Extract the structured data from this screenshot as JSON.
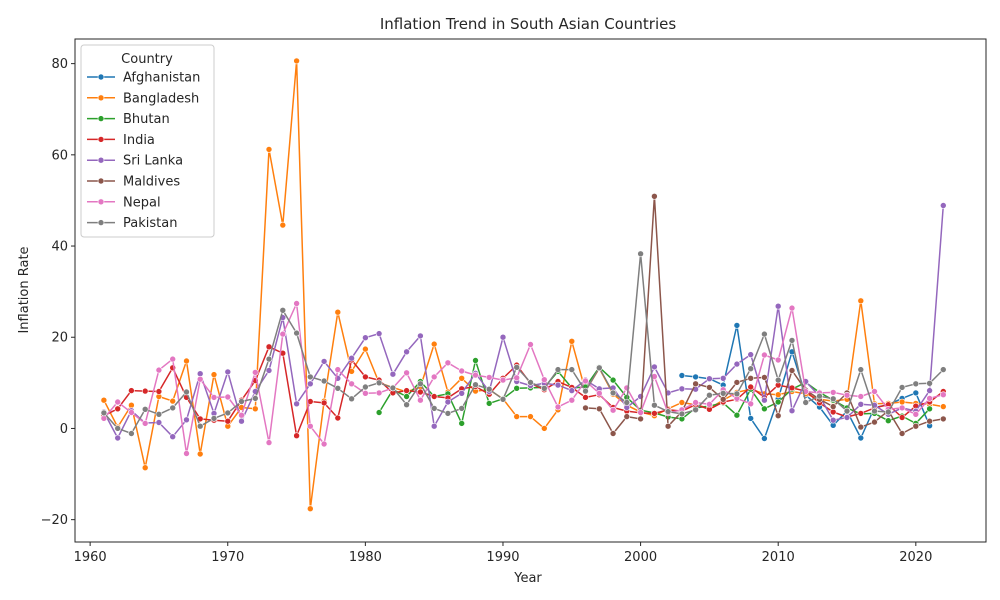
{
  "chart_data": {
    "type": "line",
    "title": "Inflation Trend in South Asian Countries",
    "xlabel": "Year",
    "ylabel": "Inflation Rate",
    "xlim": [
      1958.9,
      2025.1
    ],
    "ylim": [
      -24.9,
      85.4
    ],
    "xticks": [
      1960,
      1970,
      1980,
      1990,
      2000,
      2010,
      2020
    ],
    "yticks": [
      -20,
      0,
      20,
      40,
      60,
      80
    ],
    "grid": false,
    "legend": {
      "title": "Country",
      "placement": "top-left"
    },
    "series": [
      {
        "name": "Afghanistan",
        "color": "#1f77b4",
        "x": [
          2003,
          2004,
          2005,
          2006,
          2007,
          2008,
          2009,
          2010,
          2011,
          2012,
          2013,
          2014,
          2015,
          2016,
          2017,
          2018,
          2019,
          2020,
          2021
        ],
        "y": [
          11.6,
          11.3,
          10.9,
          9.5,
          22.6,
          2.2,
          -2.2,
          6.5,
          16.8,
          7.3,
          4.7,
          0.7,
          3.8,
          -2.1,
          4.6,
          5.2,
          6.6,
          7.8,
          0.6
        ]
      },
      {
        "name": "Bangladesh",
        "color": "#ff7f0e",
        "x": [
          1961,
          1962,
          1963,
          1964,
          1965,
          1966,
          1967,
          1968,
          1969,
          1970,
          1971,
          1972,
          1973,
          1974,
          1975,
          1976,
          1977,
          1978,
          1979,
          1980,
          1981,
          1982,
          1983,
          1984,
          1985,
          1986,
          1987,
          1988,
          1989,
          1990,
          1991,
          1992,
          1993,
          1994,
          1995,
          1996,
          1997,
          1998,
          1999,
          2000,
          2001,
          2002,
          2003,
          2004,
          2005,
          2006,
          2007,
          2008,
          2009,
          2010,
          2011,
          2012,
          2013,
          2014,
          2015,
          2016,
          2017,
          2018,
          2019,
          2020,
          2021,
          2022
        ],
        "y": [
          6.2,
          0.3,
          5.1,
          -8.6,
          7.0,
          6.0,
          14.8,
          -5.6,
          11.8,
          0.5,
          4.6,
          4.3,
          61.2,
          44.6,
          80.6,
          -17.6,
          6.0,
          25.5,
          12.5,
          17.4,
          10.0,
          9.0,
          8.0,
          9.1,
          18.5,
          8.0,
          11.0,
          8.2,
          8.5,
          6.5,
          2.6,
          2.6,
          0.0,
          4.1,
          19.1,
          8.2,
          13.2,
          7.5,
          5.1,
          3.6,
          2.8,
          4.3,
          5.7,
          5.2,
          4.4,
          6.2,
          7.9,
          8.6,
          7.6,
          7.4,
          8.1,
          7.6,
          6.4,
          6.0,
          6.4,
          28.0,
          5.4,
          5.5,
          5.8,
          5.5,
          5.3,
          4.8
        ]
      },
      {
        "name": "Bhutan",
        "color": "#2ca02c",
        "x": [
          1981,
          1982,
          1983,
          1984,
          1985,
          1986,
          1987,
          1988,
          1989,
          1990,
          1991,
          1992,
          1993,
          1994,
          1995,
          1996,
          1997,
          1998,
          1999,
          2000,
          2001,
          2002,
          2003,
          2004,
          2005,
          2006,
          2007,
          2008,
          2009,
          2010,
          2011,
          2012,
          2013,
          2014,
          2015,
          2016,
          2017,
          2018,
          2019,
          2020,
          2021
        ],
        "y": [
          3.5,
          8.5,
          7.0,
          10.3,
          7.0,
          7.6,
          1.1,
          14.9,
          5.5,
          6.5,
          8.8,
          8.9,
          9.0,
          12.5,
          8.9,
          9.1,
          13.4,
          10.6,
          6.8,
          4.0,
          3.4,
          2.5,
          2.1,
          4.5,
          4.9,
          5.6,
          2.9,
          8.6,
          4.3,
          5.8,
          8.6,
          10.1,
          7.9,
          6.2,
          4.5,
          3.2,
          3.3,
          1.7,
          2.7,
          1.1,
          4.3
        ]
      },
      {
        "name": "India",
        "color": "#d62728",
        "x": [
          1961,
          1962,
          1963,
          1964,
          1965,
          1966,
          1967,
          1968,
          1969,
          1970,
          1971,
          1972,
          1973,
          1974,
          1975,
          1976,
          1977,
          1978,
          1979,
          1980,
          1981,
          1982,
          1983,
          1984,
          1985,
          1986,
          1987,
          1988,
          1989,
          1990,
          1991,
          1992,
          1993,
          1994,
          1995,
          1996,
          1997,
          1998,
          1999,
          2000,
          2001,
          2002,
          2003,
          2004,
          2005,
          2006,
          2007,
          2008,
          2009,
          2010,
          2011,
          2012,
          2013,
          2014,
          2015,
          2016,
          2017,
          2018,
          2019,
          2020,
          2021,
          2022
        ],
        "y": [
          2.8,
          4.3,
          8.3,
          8.2,
          8.1,
          13.3,
          6.8,
          2.1,
          1.8,
          1.6,
          6.2,
          10.5,
          17.9,
          16.5,
          -1.6,
          5.9,
          5.6,
          2.3,
          15.0,
          11.3,
          10.6,
          7.8,
          8.3,
          8.0,
          7.0,
          6.7,
          8.7,
          9.2,
          7.5,
          11.0,
          13.9,
          9.9,
          8.5,
          10.3,
          9.0,
          6.8,
          7.4,
          4.6,
          3.8,
          3.4,
          3.3,
          4.1,
          3.8,
          5.2,
          4.2,
          5.8,
          6.4,
          9.1,
          6.8,
          9.5,
          8.9,
          8.2,
          5.6,
          3.6,
          2.5,
          3.3,
          4.5,
          5.2,
          2.4,
          4.9,
          5.8,
          8.1
        ]
      },
      {
        "name": "Sri Lanka",
        "color": "#9467bd",
        "x": [
          1961,
          1962,
          1963,
          1964,
          1965,
          1966,
          1967,
          1968,
          1969,
          1970,
          1971,
          1972,
          1973,
          1974,
          1975,
          1976,
          1977,
          1978,
          1979,
          1980,
          1981,
          1982,
          1983,
          1984,
          1985,
          1986,
          1987,
          1988,
          1989,
          1990,
          1991,
          1992,
          1993,
          1994,
          1995,
          1996,
          1997,
          1998,
          1999,
          2000,
          2001,
          2002,
          2003,
          2004,
          2005,
          2006,
          2007,
          2008,
          2009,
          2010,
          2011,
          2012,
          2013,
          2014,
          2015,
          2016,
          2017,
          2018,
          2019,
          2020,
          2021,
          2022
        ],
        "y": [
          3.6,
          -2.1,
          3.9,
          1.2,
          1.3,
          -1.8,
          1.9,
          12.0,
          3.3,
          12.4,
          1.6,
          8.1,
          12.7,
          24.3,
          5.4,
          9.8,
          14.7,
          11.0,
          15.4,
          19.9,
          20.8,
          11.9,
          16.8,
          20.3,
          0.5,
          5.8,
          7.7,
          12.1,
          8.1,
          20.0,
          10.3,
          9.4,
          9.9,
          9.5,
          8.3,
          10.6,
          8.7,
          8.9,
          4.6,
          7.0,
          13.5,
          7.8,
          8.7,
          8.6,
          10.9,
          11.0,
          14.1,
          16.2,
          6.2,
          26.8,
          3.9,
          10.3,
          7.1,
          1.8,
          2.4,
          5.3,
          5.1,
          3.1,
          4.5,
          3.8,
          8.3,
          48.9
        ]
      },
      {
        "name": "Maldives",
        "color": "#8c564b",
        "x": [
          1996,
          1997,
          1998,
          1999,
          2000,
          2001,
          2002,
          2003,
          2004,
          2005,
          2006,
          2007,
          2008,
          2009,
          2010,
          2011,
          2012,
          2013,
          2014,
          2015,
          2016,
          2017,
          2018,
          2019,
          2020,
          2021,
          2022
        ],
        "y": [
          4.5,
          4.3,
          -1.1,
          2.6,
          2.1,
          50.9,
          0.5,
          3.7,
          9.8,
          9.0,
          6.4,
          10.1,
          11.0,
          11.2,
          2.8,
          12.7,
          8.4,
          6.4,
          4.8,
          7.8,
          0.3,
          1.4,
          3.9,
          -1.1,
          0.5,
          1.6,
          2.1
        ]
      },
      {
        "name": "Nepal",
        "color": "#e377c2",
        "x": [
          1961,
          1962,
          1963,
          1964,
          1965,
          1966,
          1967,
          1968,
          1969,
          1970,
          1971,
          1972,
          1973,
          1974,
          1975,
          1976,
          1977,
          1978,
          1979,
          1980,
          1981,
          1982,
          1983,
          1984,
          1985,
          1986,
          1987,
          1988,
          1989,
          1990,
          1991,
          1992,
          1993,
          1994,
          1995,
          1996,
          1997,
          1998,
          1999,
          2000,
          2001,
          2002,
          2003,
          2004,
          2005,
          2006,
          2007,
          2008,
          2009,
          2010,
          2011,
          2012,
          2013,
          2014,
          2015,
          2016,
          2017,
          2018,
          2019,
          2020,
          2021,
          2022
        ],
        "y": [
          2.2,
          5.8,
          3.5,
          1.1,
          12.8,
          15.2,
          -5.5,
          10.8,
          6.8,
          6.9,
          2.9,
          12.3,
          -3.1,
          20.7,
          27.4,
          0.5,
          -3.4,
          12.9,
          9.8,
          7.7,
          7.8,
          8.9,
          12.2,
          6.2,
          11.3,
          14.4,
          12.6,
          11.7,
          11.2,
          10.6,
          11.1,
          18.4,
          10.7,
          4.7,
          6.2,
          10.4,
          7.7,
          4.0,
          8.9,
          3.5,
          11.4,
          3.4,
          4.1,
          5.7,
          5.3,
          8.5,
          6.6,
          5.4,
          16.1,
          15.0,
          26.4,
          8.1,
          7.8,
          7.9,
          7.3,
          7.0,
          8.1,
          4.2,
          4.5,
          3.1,
          6.6,
          7.4
        ]
      },
      {
        "name": "Pakistan",
        "color": "#7f7f7f",
        "x": [
          1961,
          1962,
          1963,
          1964,
          1965,
          1966,
          1967,
          1968,
          1969,
          1970,
          1971,
          1972,
          1973,
          1974,
          1975,
          1976,
          1977,
          1978,
          1979,
          1980,
          1981,
          1982,
          1983,
          1984,
          1985,
          1986,
          1987,
          1988,
          1989,
          1990,
          1991,
          1992,
          1993,
          1994,
          1995,
          1996,
          1997,
          1998,
          1999,
          2000,
          2001,
          2002,
          2003,
          2004,
          2005,
          2006,
          2007,
          2008,
          2009,
          2010,
          2011,
          2012,
          2013,
          2014,
          2015,
          2016,
          2017,
          2018,
          2019,
          2020,
          2021,
          2022
        ],
        "y": [
          3.4,
          0.0,
          -1.1,
          4.2,
          3.1,
          4.5,
          8.0,
          0.5,
          2.2,
          3.4,
          5.9,
          6.6,
          15.2,
          25.9,
          20.9,
          11.3,
          10.4,
          8.8,
          6.5,
          9.1,
          10.0,
          8.9,
          5.2,
          9.8,
          4.4,
          3.3,
          4.4,
          9.6,
          8.6,
          6.4,
          13.4,
          10.1,
          8.8,
          12.9,
          12.9,
          8.2,
          13.3,
          7.8,
          5.7,
          38.3,
          5.1,
          3.7,
          3.2,
          4.1,
          7.3,
          7.7,
          7.6,
          13.1,
          20.7,
          10.6,
          19.3,
          5.7,
          7.1,
          6.5,
          3.8,
          12.9,
          3.8,
          3.6,
          9.0,
          9.8,
          9.9,
          12.9
        ]
      }
    ]
  }
}
